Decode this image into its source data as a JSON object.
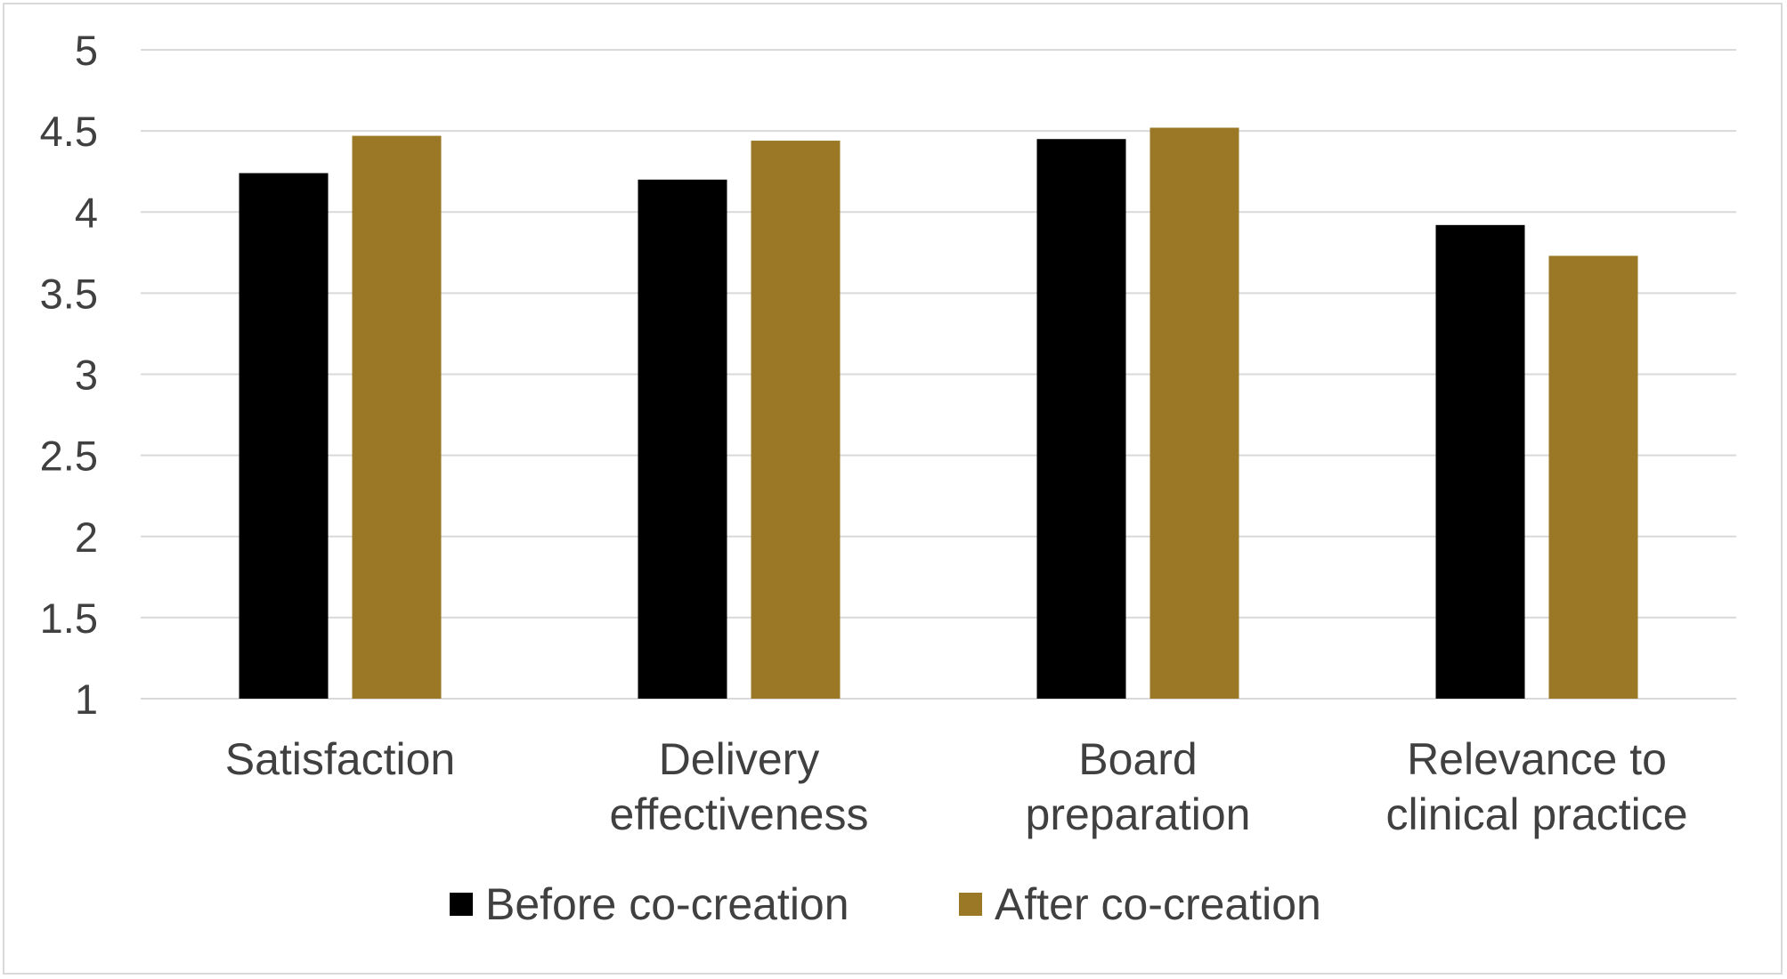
{
  "chart_data": {
    "type": "bar",
    "categories": [
      [
        "Satisfaction"
      ],
      [
        "Delivery",
        "effectiveness"
      ],
      [
        "Board",
        "preparation"
      ],
      [
        "Relevance to",
        "clinical practice"
      ]
    ],
    "series": [
      {
        "name": "Before co-creation",
        "color": "#000000",
        "values": [
          4.24,
          4.2,
          4.45,
          3.92
        ]
      },
      {
        "name": "After co-creation",
        "color": "#9a7826",
        "values": [
          4.47,
          4.44,
          4.52,
          3.73
        ]
      }
    ],
    "yticks": [
      "1",
      "1.5",
      "2",
      "2.5",
      "3",
      "3.5",
      "4",
      "4.5",
      "5"
    ],
    "ylim": [
      1,
      5
    ],
    "title": "",
    "xlabel": "",
    "ylabel": "",
    "grid": true,
    "legend_position": "bottom"
  }
}
